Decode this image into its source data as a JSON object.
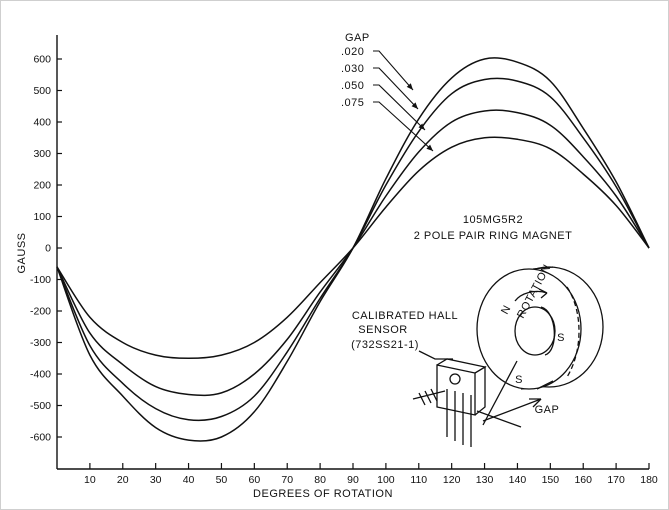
{
  "chart_data": {
    "type": "line",
    "title": "",
    "xlabel": "DEGREES OF ROTATION",
    "ylabel": "GAUSS",
    "xlim": [
      0,
      180
    ],
    "ylim": [
      -650,
      650
    ],
    "x_ticks": [
      10,
      20,
      30,
      40,
      50,
      60,
      70,
      80,
      90,
      100,
      110,
      120,
      130,
      140,
      150,
      160,
      170,
      180
    ],
    "x_tick_labels": [
      "10",
      "20",
      "30",
      "40",
      "50",
      "60",
      "70",
      "80",
      "90",
      "100",
      "110",
      "120",
      "130",
      "140",
      "150",
      "160",
      "170",
      "180"
    ],
    "y_ticks": [
      600,
      500,
      400,
      300,
      200,
      100,
      0,
      -100,
      -200,
      -300,
      -400,
      -500,
      -600
    ],
    "y_tick_labels": [
      "600",
      "500",
      "400",
      "300",
      "200",
      "100",
      "0",
      "-100",
      "-200",
      "-300",
      "-400",
      "-500",
      "-600"
    ],
    "grid": false,
    "legend_title": "GAP",
    "series": [
      {
        "name": ".020",
        "x": [
          0,
          10,
          20,
          30,
          40,
          50,
          60,
          70,
          80,
          90,
          100,
          110,
          120,
          130,
          140,
          150,
          160,
          170,
          180
        ],
        "y": [
          -60,
          -340,
          -470,
          -570,
          -610,
          -600,
          -520,
          -360,
          -170,
          0,
          220,
          410,
          540,
          600,
          590,
          530,
          380,
          210,
          0
        ]
      },
      {
        "name": ".030",
        "x": [
          0,
          10,
          20,
          30,
          40,
          50,
          60,
          70,
          80,
          90,
          100,
          110,
          120,
          130,
          140,
          150,
          160,
          170,
          180
        ],
        "y": [
          -60,
          -310,
          -430,
          -510,
          -545,
          -535,
          -470,
          -330,
          -160,
          0,
          200,
          370,
          490,
          535,
          530,
          480,
          350,
          195,
          0
        ]
      },
      {
        "name": ".050",
        "x": [
          0,
          10,
          20,
          30,
          40,
          50,
          60,
          70,
          80,
          90,
          100,
          110,
          120,
          130,
          140,
          150,
          160,
          170,
          180
        ],
        "y": [
          -60,
          -270,
          -370,
          -440,
          -465,
          -460,
          -400,
          -290,
          -140,
          0,
          165,
          305,
          400,
          435,
          430,
          390,
          290,
          165,
          0
        ]
      },
      {
        "name": ".075",
        "x": [
          0,
          10,
          20,
          30,
          40,
          50,
          60,
          70,
          80,
          90,
          100,
          110,
          120,
          130,
          140,
          150,
          160,
          170,
          180
        ],
        "y": [
          -60,
          -220,
          -300,
          -340,
          -350,
          -340,
          -300,
          -220,
          -110,
          0,
          130,
          245,
          320,
          350,
          345,
          315,
          235,
          135,
          0
        ]
      }
    ],
    "annotations": {
      "magnet_line1": "105MG5R2",
      "magnet_line2": "2 POLE PAIR RING MAGNET",
      "sensor_line1": "CALIBRATED HALL",
      "sensor_line2": "SENSOR",
      "sensor_line3": "(732SS21-1)",
      "rotation": "ROTATION",
      "gap": "GAP",
      "pole_n": "N",
      "pole_s1": "S",
      "pole_s2": "S"
    }
  },
  "colors": {
    "ink": "#111111",
    "background": "#ffffff",
    "frame": "#cfcfcf"
  }
}
